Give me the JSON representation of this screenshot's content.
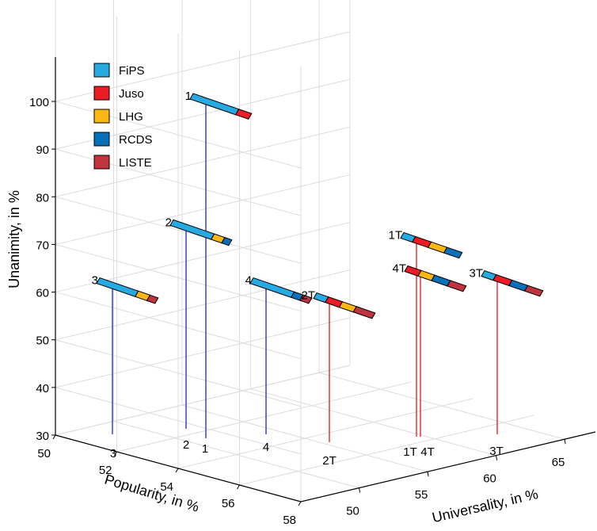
{
  "chart_data": {
    "type": "3d-scatter",
    "xlabel": "Popularity, in %",
    "ylabel": "Universality, in %",
    "zlabel": "Unanimity, in %",
    "x_ticks": [
      50,
      52,
      54,
      56,
      58
    ],
    "y_ticks": [
      50,
      55,
      60,
      65
    ],
    "z_ticks": [
      30,
      40,
      50,
      60,
      70,
      80,
      90,
      100
    ],
    "grid": true,
    "legend_position": "top-left",
    "parties": [
      {
        "name": "FiPS",
        "color": "#27aae1"
      },
      {
        "name": "Juso",
        "color": "#ed1c24"
      },
      {
        "name": "LHG",
        "color": "#fbb814"
      },
      {
        "name": "RCDS",
        "color": "#0870b8"
      },
      {
        "name": "LISTE",
        "color": "#c0343f"
      }
    ],
    "series": [
      {
        "name": "",
        "color": "#2323c8",
        "points": [
          {
            "label": "1",
            "unanimity": 100,
            "shares": [
              0.78,
              0.22,
              0,
              0,
              0
            ]
          },
          {
            "label": "2",
            "unanimity": 71.5,
            "shares": [
              0.7,
              0,
              0.18,
              0.12,
              0
            ]
          },
          {
            "label": "3",
            "unanimity": 60.5,
            "shares": [
              0.66,
              0,
              0.2,
              0,
              0.14
            ]
          },
          {
            "label": "4",
            "unanimity": 60.5,
            "shares": [
              0.7,
              0,
              0,
              0.15,
              0.15
            ]
          }
        ]
      },
      {
        "name": "",
        "color": "#e8141e",
        "points": [
          {
            "label": "2T",
            "unanimity": 59,
            "shares": [
              0.2,
              0.24,
              0.24,
              0,
              0.32
            ]
          },
          {
            "label": "1T",
            "unanimity": 70.5,
            "shares": [
              0.2,
              0.27,
              0.27,
              0.26,
              0
            ]
          },
          {
            "label": "4T",
            "unanimity": 63.5,
            "shares": [
              0,
              0.23,
              0.23,
              0.27,
              0.27
            ]
          },
          {
            "label": "3T",
            "unanimity": 62,
            "shares": [
              0.2,
              0.27,
              0,
              0.27,
              0.26
            ]
          }
        ]
      }
    ]
  }
}
